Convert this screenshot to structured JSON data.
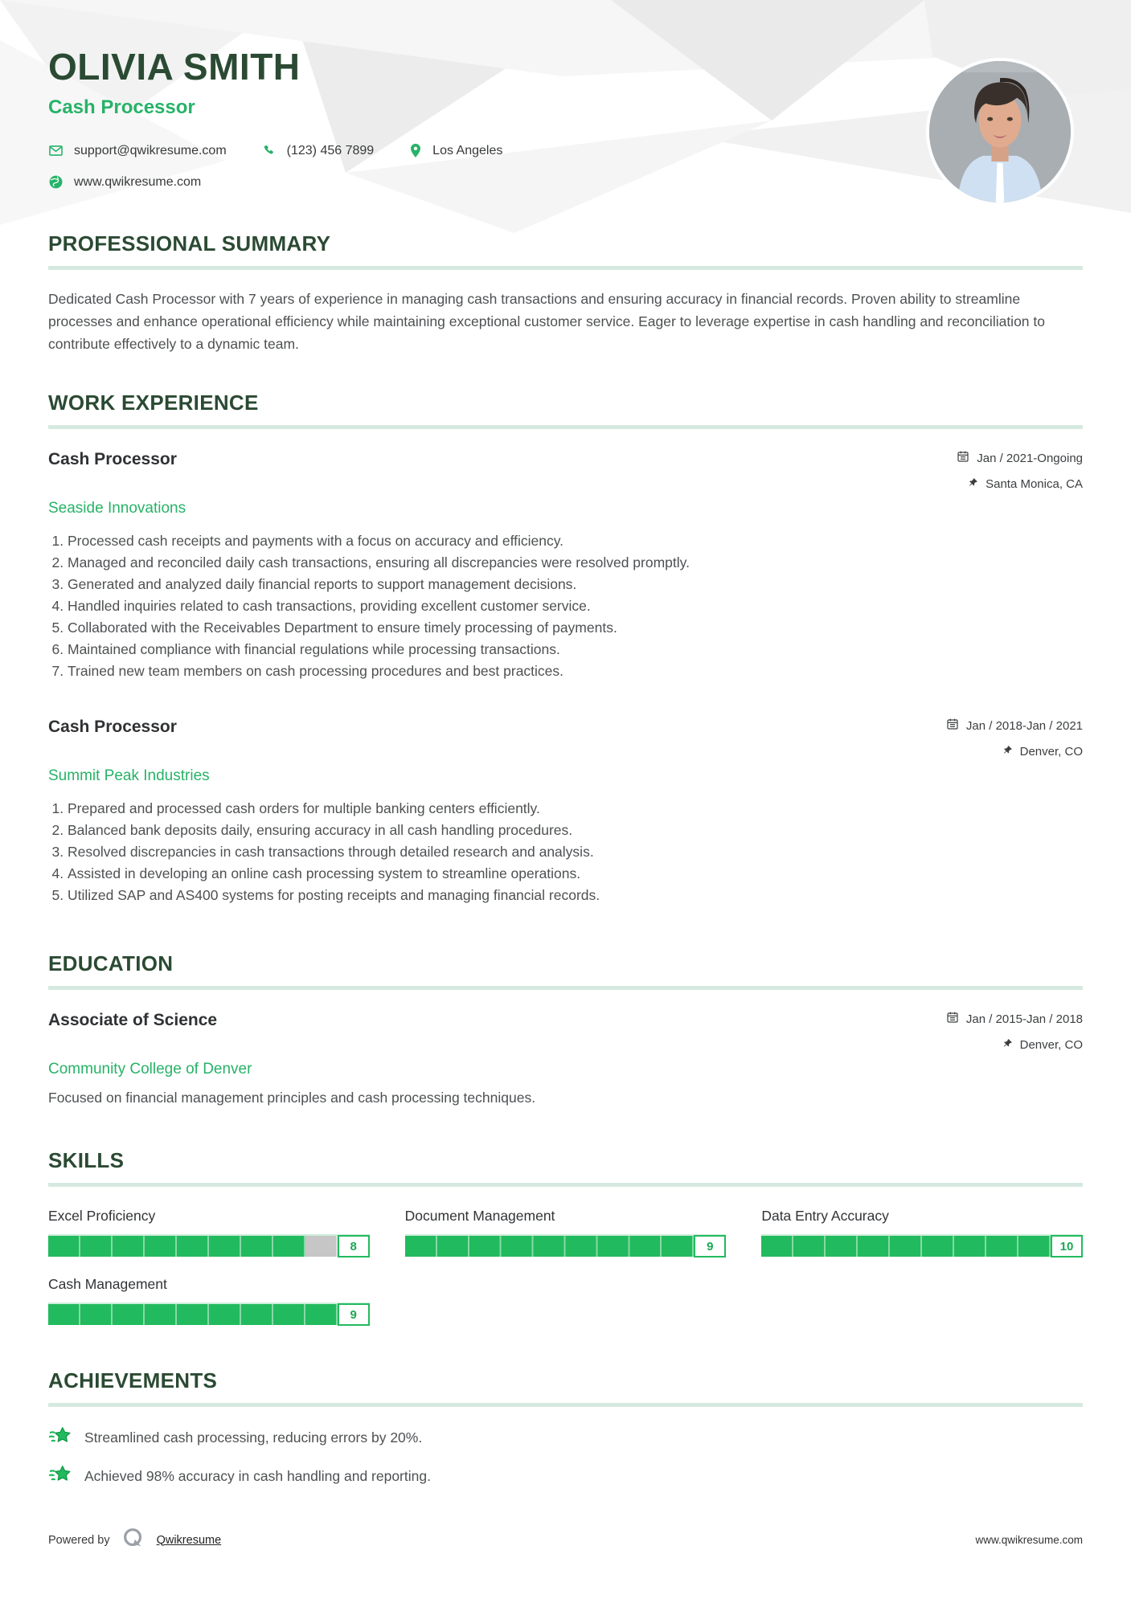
{
  "header": {
    "name": "OLIVIA SMITH",
    "title": "Cash Processor",
    "contact": {
      "email": "support@qwikresume.com",
      "phone": "(123) 456 7899",
      "location": "Los Angeles",
      "website": "www.qwikresume.com"
    }
  },
  "sections": {
    "summary": {
      "heading": "PROFESSIONAL SUMMARY",
      "text": "Dedicated Cash Processor with 7 years of experience in managing cash transactions and ensuring accuracy in financial records. Proven ability to streamline processes and enhance operational efficiency while maintaining exceptional customer service. Eager to leverage expertise in cash handling and reconciliation to contribute effectively to a dynamic team."
    },
    "experience": {
      "heading": "WORK EXPERIENCE",
      "jobs": [
        {
          "title": "Cash Processor",
          "company": "Seaside Innovations",
          "dates": "Jan / 2021-Ongoing",
          "location": "Santa Monica, CA",
          "bullets": [
            "Processed cash receipts and payments with a focus on accuracy and efficiency.",
            "Managed and reconciled daily cash transactions, ensuring all discrepancies were resolved promptly.",
            "Generated and analyzed daily financial reports to support management decisions.",
            "Handled inquiries related to cash transactions, providing excellent customer service.",
            "Collaborated with the Receivables Department to ensure timely processing of payments.",
            "Maintained compliance with financial regulations while processing transactions.",
            "Trained new team members on cash processing procedures and best practices."
          ]
        },
        {
          "title": "Cash Processor",
          "company": "Summit Peak Industries",
          "dates": "Jan / 2018-Jan / 2021",
          "location": "Denver, CO",
          "bullets": [
            "Prepared and processed cash orders for multiple banking centers efficiently.",
            "Balanced bank deposits daily, ensuring accuracy in all cash handling procedures.",
            "Resolved discrepancies in cash transactions through detailed research and analysis.",
            "Assisted in developing an online cash processing system to streamline operations.",
            "Utilized SAP and AS400 systems for posting receipts and managing financial records."
          ]
        }
      ]
    },
    "education": {
      "heading": "EDUCATION",
      "degree": "Associate of Science",
      "school": "Community College of Denver",
      "dates": "Jan / 2015-Jan / 2018",
      "location": "Denver, CO",
      "description": "Focused on financial management principles and cash processing techniques."
    },
    "skills": {
      "heading": "SKILLS",
      "items": [
        {
          "name": "Excel Proficiency",
          "value": 8,
          "max": 10
        },
        {
          "name": "Document Management",
          "value": 9,
          "max": 10
        },
        {
          "name": "Data Entry Accuracy",
          "value": 10,
          "max": 10
        },
        {
          "name": "Cash Management",
          "value": 9,
          "max": 10
        }
      ]
    },
    "achievements": {
      "heading": "ACHIEVEMENTS",
      "items": [
        "Streamlined cash processing, reducing errors by 20%.",
        "Achieved 98% accuracy in cash handling and reporting."
      ]
    }
  },
  "footer": {
    "powered_by": "Powered by",
    "brand": "Qwikresume",
    "website": "www.qwikresume.com"
  },
  "icons": {
    "email": "envelope-outline",
    "phone": "handset-filled",
    "location": "map-pin-filled",
    "website": "globe-filled",
    "dates": "calendar-grid",
    "job_location": "pushpin",
    "achievement": "shooting-star"
  },
  "colors": {
    "heading_green": "#2b4a33",
    "accent_green": "#27b368",
    "bar_green": "#22ba5e",
    "bar_gray": "#c6c6c6",
    "rule_green": "#d6e9e0"
  }
}
